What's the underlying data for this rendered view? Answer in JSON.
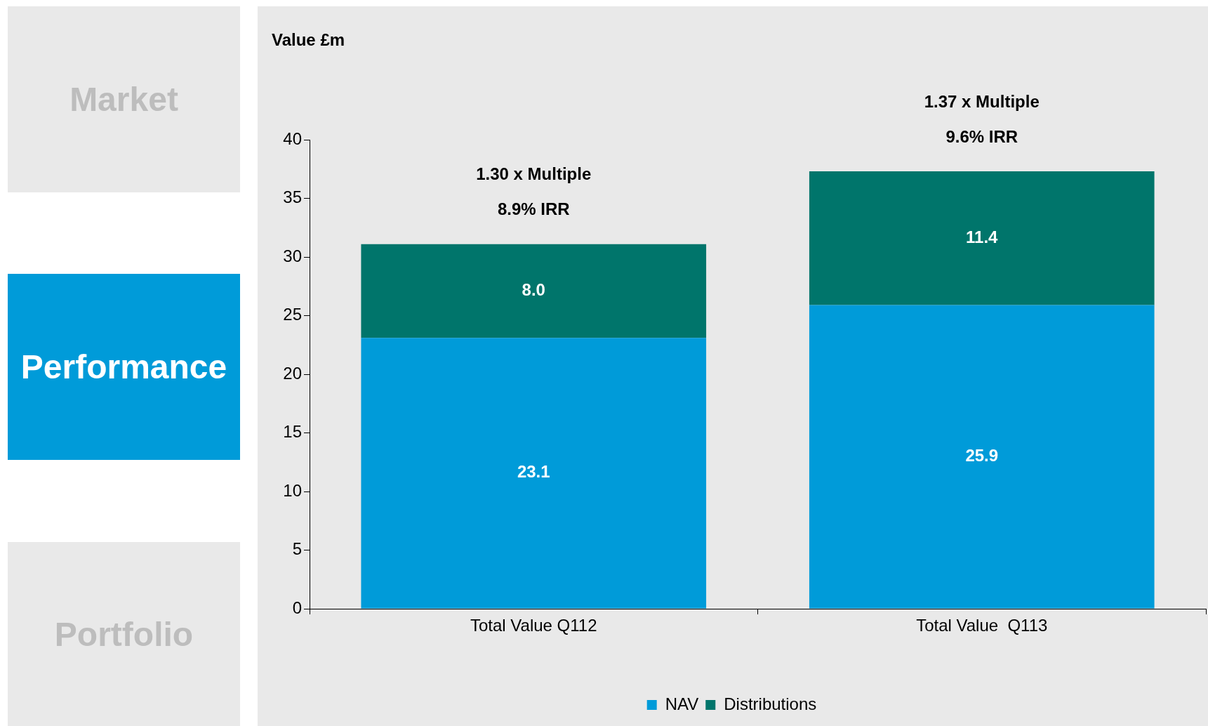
{
  "chart_data": {
    "type": "bar",
    "ylabel": "Value £m",
    "categories": [
      "Total Value Q112",
      "Total Value  Q113"
    ],
    "stacked": true,
    "series": [
      {
        "name": "NAV",
        "color": "#009bd9",
        "values": [
          23.1,
          25.9
        ],
        "value_labels": [
          "23.1",
          "25.9"
        ]
      },
      {
        "name": "Distributions",
        "color": "#00756b",
        "values": [
          8.0,
          11.4
        ],
        "value_labels": [
          "8.0",
          "11.4"
        ]
      }
    ],
    "ylim": [
      0,
      40
    ],
    "yticks": [
      0,
      5,
      10,
      15,
      20,
      25,
      30,
      35,
      40
    ],
    "grid": false,
    "legend": "bottom",
    "annotations": [
      "Market",
      "Performance",
      "Portfolio",
      "1.30 x Multiple",
      "8.9% IRR",
      "1.37 x Multiple",
      "9.6% IRR"
    ]
  }
}
